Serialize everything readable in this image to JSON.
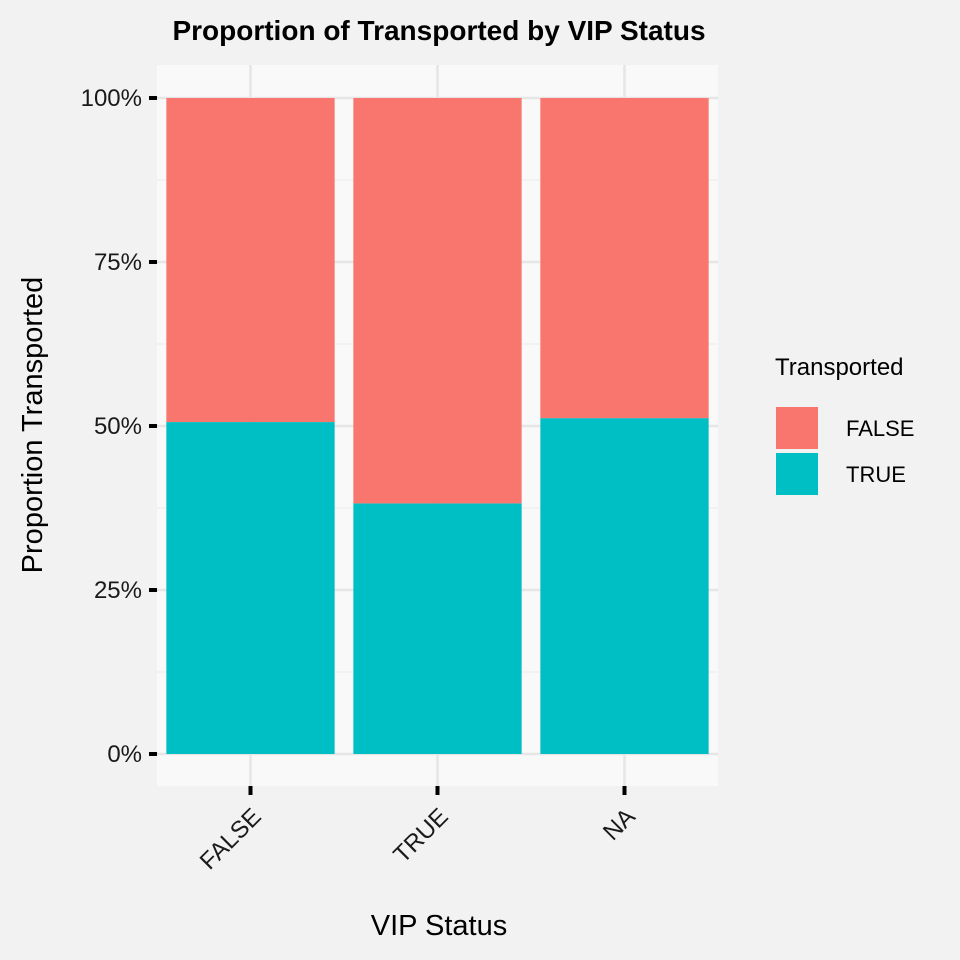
{
  "chart_data": {
    "type": "bar",
    "stacked": true,
    "title": "Proportion of Transported by VIP Status",
    "xlabel": "VIP Status",
    "ylabel": "Proportion Transported",
    "categories": [
      "FALSE",
      "TRUE",
      "NA"
    ],
    "series": [
      {
        "name": "TRUE",
        "color": "#00BFC4",
        "values": [
          0.506,
          0.382,
          0.512
        ]
      },
      {
        "name": "FALSE",
        "color": "#F8766D",
        "values": [
          0.494,
          0.618,
          0.488
        ]
      }
    ],
    "ylim": [
      0,
      1
    ],
    "yticks": [
      0,
      0.25,
      0.5,
      0.75,
      1.0
    ],
    "ytick_labels": [
      "0%",
      "25%",
      "50%",
      "75%",
      "100%"
    ],
    "legend": {
      "title": "Transported",
      "placement": "right",
      "entries": [
        {
          "label": "FALSE",
          "color": "#F8766D"
        },
        {
          "label": "TRUE",
          "color": "#00BFC4"
        }
      ]
    },
    "grid": true,
    "panel_color": "#f9f9f9",
    "background_color": "#f2f2f2"
  }
}
